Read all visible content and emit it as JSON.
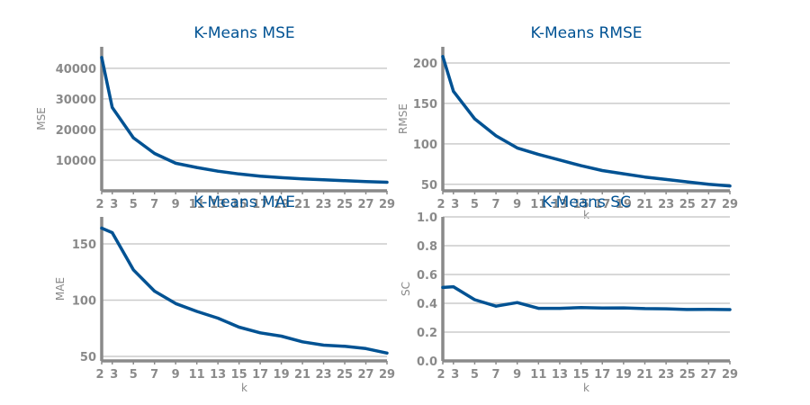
{
  "colors": {
    "line": "#005293",
    "axis": "#8a8a8a",
    "grid": "#cccccc",
    "title": "#005293",
    "background": "#ffffff"
  },
  "chart_data": [
    {
      "type": "line",
      "title": "K-Means MSE",
      "xlabel": "",
      "ylabel": "MSE",
      "x": [
        2,
        3,
        5,
        7,
        9,
        11,
        13,
        15,
        17,
        19,
        21,
        23,
        25,
        27,
        29
      ],
      "xticks": [
        2,
        3,
        5,
        7,
        9,
        11,
        13,
        15,
        17,
        19,
        21,
        23,
        25,
        27,
        29
      ],
      "xlim": [
        2,
        29
      ],
      "yticks": [
        10000,
        20000,
        30000,
        40000
      ],
      "ylim": [
        0,
        47000
      ],
      "grid": true,
      "series": [
        {
          "values": [
            43500,
            27200,
            17300,
            12200,
            9000,
            7600,
            6400,
            5500,
            4800,
            4300,
            3900,
            3600,
            3300,
            3000,
            2800
          ]
        }
      ]
    },
    {
      "type": "line",
      "title": "K-Means RMSE",
      "xlabel": "k",
      "ylabel": "RMSE",
      "x": [
        2,
        3,
        5,
        7,
        9,
        11,
        13,
        15,
        17,
        19,
        21,
        23,
        25,
        27,
        29
      ],
      "xticks": [
        2,
        3,
        5,
        7,
        9,
        11,
        13,
        15,
        17,
        19,
        21,
        23,
        25,
        27,
        29
      ],
      "xlim": [
        2,
        29
      ],
      "yticks": [
        50,
        100,
        150,
        200
      ],
      "ylim": [
        42,
        220
      ],
      "grid": true,
      "series": [
        {
          "values": [
            208,
            165,
            131,
            110,
            95,
            87,
            80,
            73,
            67,
            63,
            59,
            56,
            53,
            50,
            48
          ]
        }
      ]
    },
    {
      "type": "line",
      "title": "K-Means MAE",
      "xlabel": "k",
      "ylabel": "MAE",
      "x": [
        2,
        3,
        5,
        7,
        9,
        11,
        13,
        15,
        17,
        19,
        21,
        23,
        25,
        27,
        29
      ],
      "xticks": [
        2,
        3,
        5,
        7,
        9,
        11,
        13,
        15,
        17,
        19,
        21,
        23,
        25,
        27,
        29
      ],
      "xlim": [
        2,
        29
      ],
      "yticks": [
        50,
        100,
        150
      ],
      "ylim": [
        46,
        174
      ],
      "grid": true,
      "series": [
        {
          "values": [
            164,
            160,
            127,
            108,
            97,
            90,
            84,
            76,
            71,
            68,
            63,
            60,
            59,
            57,
            53
          ]
        }
      ]
    },
    {
      "type": "line",
      "title": "K-Means SC",
      "xlabel": "k",
      "ylabel": "SC",
      "x": [
        2,
        3,
        5,
        7,
        9,
        11,
        13,
        15,
        17,
        19,
        21,
        23,
        25,
        27,
        29
      ],
      "xticks": [
        2,
        3,
        5,
        7,
        9,
        11,
        13,
        15,
        17,
        19,
        21,
        23,
        25,
        27,
        29
      ],
      "xlim": [
        2,
        29
      ],
      "yticks": [
        0.0,
        0.2,
        0.4,
        0.6,
        0.8,
        1.0
      ],
      "ylim": [
        0,
        1.0
      ],
      "grid": true,
      "series": [
        {
          "values": [
            0.51,
            0.515,
            0.425,
            0.38,
            0.405,
            0.365,
            0.365,
            0.37,
            0.367,
            0.368,
            0.363,
            0.362,
            0.357,
            0.358,
            0.356
          ]
        }
      ]
    }
  ]
}
